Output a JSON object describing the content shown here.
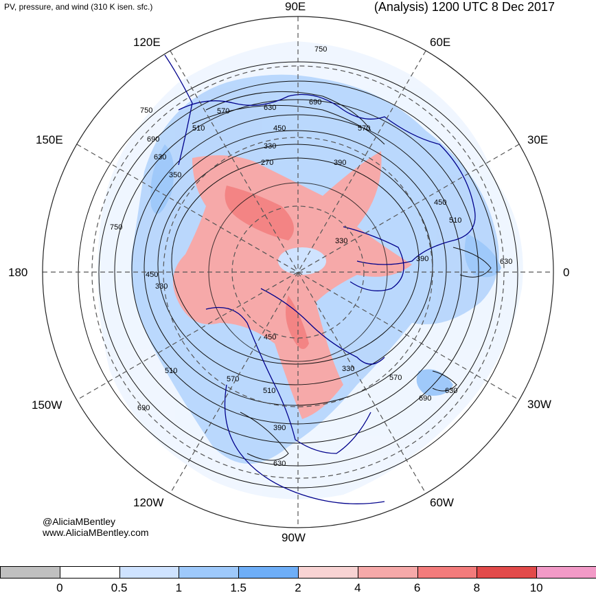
{
  "header": {
    "title_left": "PV, pressure, and wind (310 K isen. sfc.)",
    "title_right": "(Analysis) 1200 UTC 8 Dec 2017"
  },
  "longitude_labels": {
    "lon_90E": "90E",
    "lon_60E": "60E",
    "lon_30E": "30E",
    "lon_0": "0",
    "lon_30W": "30W",
    "lon_60W": "60W",
    "lon_90W": "90W",
    "lon_120W": "120W",
    "lon_150W": "150W",
    "lon_180": "180",
    "lon_150E": "150E",
    "lon_120E": "120E"
  },
  "pressure_contour_labels": [
    "750",
    "630",
    "690",
    "570",
    "450",
    "570",
    "510",
    "330",
    "270",
    "390",
    "690",
    "630",
    "350",
    "750",
    "450",
    "330",
    "330",
    "450",
    "510",
    "570",
    "510",
    "390",
    "630",
    "390",
    "450",
    "510",
    "630",
    "690",
    "570",
    "330",
    "690",
    "630",
    "750"
  ],
  "credits": {
    "handle": "@AliciaMBentley",
    "website": "www.AliciaMBentley.com"
  },
  "colorbar": {
    "colors": [
      "#c0c0c0",
      "#ffffff",
      "#cfe3ff",
      "#9ec9fb",
      "#6eaef7",
      "#f8d3d3",
      "#f6a9a9",
      "#f37b7b",
      "#e24a4a",
      "#f29ac7"
    ],
    "ticks": [
      "0",
      "0.5",
      "1",
      "1.5",
      "2",
      "4",
      "6",
      "8",
      "10"
    ]
  }
}
